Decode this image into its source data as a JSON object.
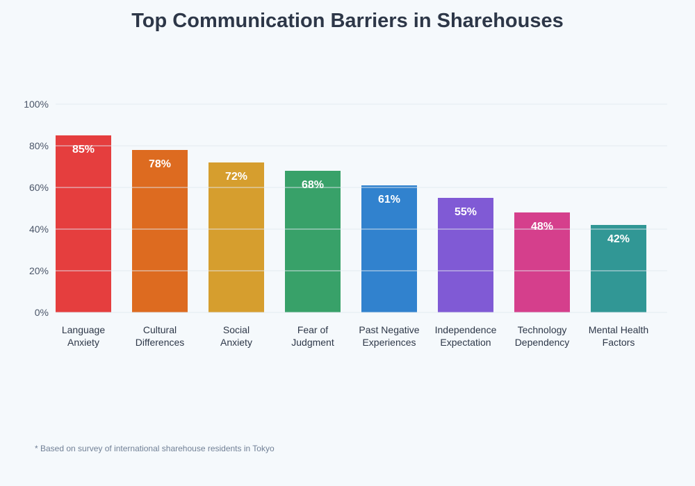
{
  "chart_data": {
    "type": "bar",
    "title": "Top Communication Barriers in Sharehouses",
    "categories": [
      [
        "Language",
        "Anxiety"
      ],
      [
        "Cultural",
        "Differences"
      ],
      [
        "Social",
        "Anxiety"
      ],
      [
        "Fear of",
        "Judgment"
      ],
      [
        "Past Negative",
        "Experiences"
      ],
      [
        "Independence",
        "Expectation"
      ],
      [
        "Technology",
        "Dependency"
      ],
      [
        "Mental Health",
        "Factors"
      ]
    ],
    "values": [
      85,
      78,
      72,
      68,
      61,
      55,
      48,
      42
    ],
    "data_labels": [
      "85%",
      "78%",
      "72%",
      "68%",
      "61%",
      "55%",
      "48%",
      "42%"
    ],
    "colors": [
      "#e53e3e",
      "#dd6b20",
      "#d69e2e",
      "#38a169",
      "#3182ce",
      "#805ad5",
      "#d53f8c",
      "#319795"
    ],
    "yticks": [
      0,
      20,
      40,
      60,
      80,
      100
    ],
    "ytick_labels": [
      "0%",
      "20%",
      "40%",
      "60%",
      "80%",
      "100%"
    ],
    "ylim": [
      0,
      100
    ],
    "grid": true,
    "xlabel": "",
    "ylabel": ""
  },
  "footnote": "* Based on survey of international sharehouse residents in Tokyo"
}
